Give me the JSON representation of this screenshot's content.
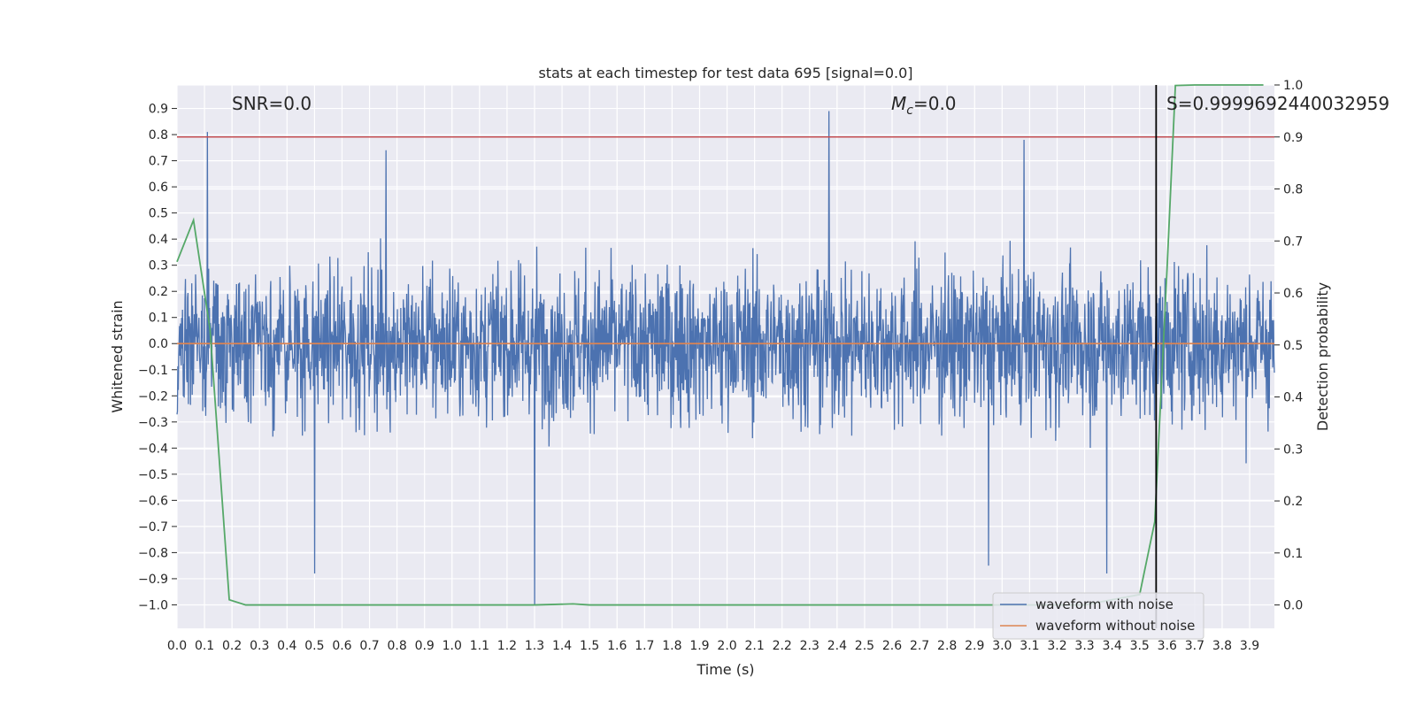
{
  "chart_data": {
    "type": "line",
    "title": "stats at each timestep for test data 695 [signal=0.0]",
    "xlabel": "Time (s)",
    "ylabel_left": "Whitened strain",
    "ylabel_right": "Detection probability",
    "xlim": [
      0.0,
      3.99
    ],
    "ylim_left": [
      -1.09,
      0.99
    ],
    "ylim_right": [
      -0.045,
      1.0
    ],
    "x_ticks": [
      0.0,
      0.1,
      0.2,
      0.3,
      0.4,
      0.5,
      0.6,
      0.7,
      0.8,
      0.9,
      1.0,
      1.1,
      1.2,
      1.3,
      1.4,
      1.5,
      1.6,
      1.7,
      1.8,
      1.9,
      2.0,
      2.1,
      2.2,
      2.3,
      2.4,
      2.5,
      2.6,
      2.7,
      2.8,
      2.9,
      3.0,
      3.1,
      3.2,
      3.3,
      3.4,
      3.5,
      3.6,
      3.7,
      3.8,
      3.9
    ],
    "x_tick_labels": [
      "0.0",
      "0.1",
      "0.2",
      "0.3",
      "0.4",
      "0.5",
      "0.6",
      "0.7",
      "0.8",
      "0.9",
      "1.0",
      "1.1",
      "1.2",
      "1.3",
      "1.4",
      "1.5",
      "1.6",
      "1.7",
      "1.8",
      "1.9",
      "2.0",
      "2.1",
      "2.2",
      "2.3",
      "2.4",
      "2.5",
      "2.6",
      "2.7",
      "2.8",
      "2.9",
      "3.0",
      "3.1",
      "3.2",
      "3.3",
      "3.4",
      "3.5",
      "3.6",
      "3.7",
      "3.8",
      "3.9"
    ],
    "y_left_ticks": [
      -1.0,
      -0.9,
      -0.8,
      -0.7,
      -0.6,
      -0.5,
      -0.4,
      -0.3,
      -0.2,
      -0.1,
      0.0,
      0.1,
      0.2,
      0.3,
      0.4,
      0.5,
      0.6,
      0.7,
      0.8,
      0.9
    ],
    "y_left_tick_labels": [
      "−1.0",
      "−0.9",
      "−0.8",
      "−0.7",
      "−0.6",
      "−0.5",
      "−0.4",
      "−0.3",
      "−0.2",
      "−0.1",
      "0.0",
      "0.1",
      "0.2",
      "0.3",
      "0.4",
      "0.5",
      "0.6",
      "0.7",
      "0.8",
      "0.9"
    ],
    "y_right_ticks": [
      0.0,
      0.1,
      0.2,
      0.3,
      0.4,
      0.5,
      0.6,
      0.7,
      0.8,
      0.9,
      1.0
    ],
    "y_right_tick_labels": [
      "0.0",
      "0.1",
      "0.2",
      "0.3",
      "0.4",
      "0.5",
      "0.6",
      "0.7",
      "0.8",
      "0.9",
      "1.0"
    ],
    "annotations": {
      "snr": "SNR=0.0",
      "mc_symbol": "M",
      "mc_sub": "c",
      "mc_value": "=0.0",
      "s": "S=0.9999692440032959"
    },
    "threshold_right": 0.9,
    "vertical_line_x": 3.56,
    "grid": true,
    "legend_position": "lower-right",
    "colors": {
      "noisy": "#4c72b0",
      "clean": "#dd8452",
      "probability": "#55a868",
      "threshold": "#c44e52",
      "vline": "#000000",
      "background": "#eaeaf2"
    },
    "series": [
      {
        "name": "waveform with noise",
        "axis": "left",
        "style": "dense-noise",
        "envelope_typical": [
          -0.45,
          0.45
        ],
        "peaks": [
          [
            0.11,
            0.81
          ],
          [
            0.76,
            0.74
          ],
          [
            2.37,
            0.89
          ],
          [
            3.08,
            0.78
          ],
          [
            0.5,
            -0.88
          ],
          [
            1.3,
            -1.0
          ],
          [
            2.95,
            -0.85
          ],
          [
            3.38,
            -0.88
          ]
        ]
      },
      {
        "name": "waveform without noise",
        "axis": "left",
        "x": [
          0.0,
          3.99
        ],
        "values": [
          0.0,
          0.0
        ]
      },
      {
        "name": "probability",
        "axis": "right",
        "x": [
          0.0,
          0.06,
          0.12,
          0.19,
          0.25,
          0.5,
          1.0,
          1.3,
          1.44,
          1.5,
          2.0,
          2.5,
          3.0,
          3.3,
          3.5,
          3.555,
          3.6,
          3.63,
          3.7,
          3.95
        ],
        "values": [
          0.66,
          0.74,
          0.53,
          0.01,
          0.0,
          0.0,
          0.0,
          0.0,
          0.002,
          0.0,
          0.0,
          0.0,
          0.0,
          0.0,
          0.02,
          0.16,
          0.65,
          0.999,
          1.0,
          1.0
        ]
      }
    ]
  }
}
